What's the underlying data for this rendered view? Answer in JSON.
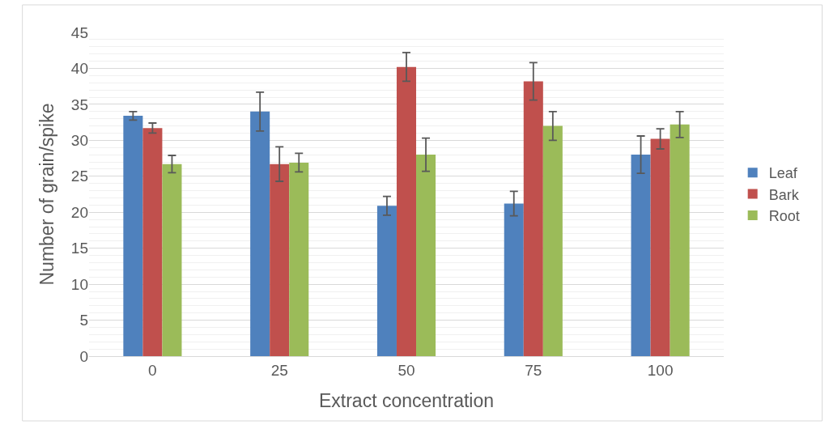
{
  "chart_data": {
    "type": "bar",
    "xlabel": "Extract concentration",
    "ylabel": "Number of grain/spike",
    "categories": [
      "0",
      "25",
      "50",
      "75",
      "100"
    ],
    "series": [
      {
        "name": "Leaf",
        "color": "#4f81bd",
        "values": [
          33.4,
          34,
          20.9,
          21.2,
          28
        ],
        "errors": [
          0.6,
          2.7,
          1.3,
          1.7,
          2.6
        ]
      },
      {
        "name": "Bark",
        "color": "#c0504d",
        "values": [
          31.7,
          26.7,
          40.2,
          38.2,
          30.2
        ],
        "errors": [
          0.7,
          2.4,
          2,
          2.6,
          1.4
        ]
      },
      {
        "name": "Root",
        "color": "#9bbb59",
        "values": [
          26.7,
          26.9,
          28,
          32,
          32.2
        ],
        "errors": [
          1.2,
          1.3,
          2.3,
          2,
          1.8
        ]
      }
    ],
    "ylim": [
      0,
      45
    ],
    "yticks": [
      0,
      5,
      10,
      15,
      20,
      25,
      30,
      35,
      40,
      45
    ],
    "grid": "y",
    "legend": "right"
  }
}
